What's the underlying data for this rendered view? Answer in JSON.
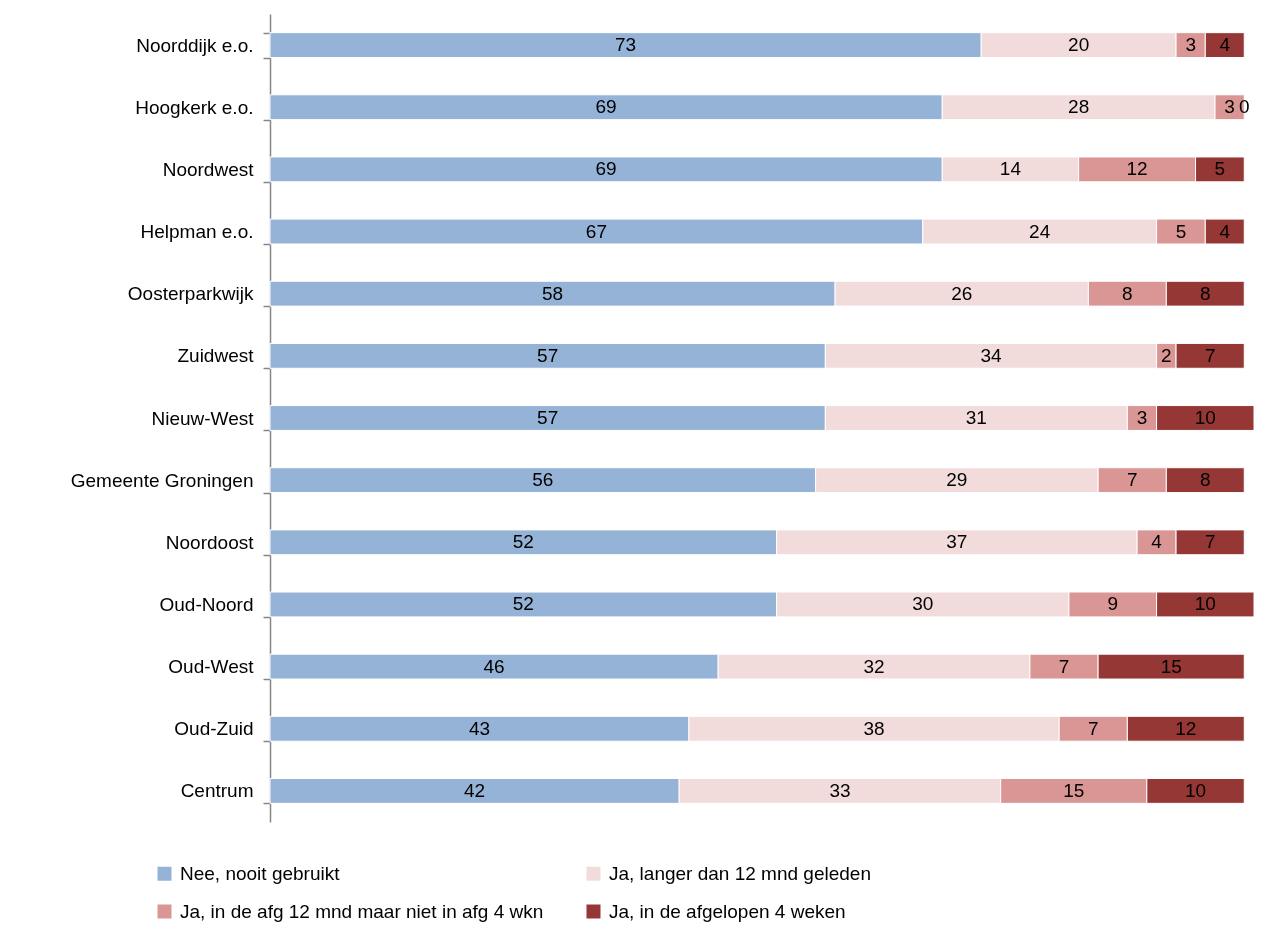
{
  "chart_data": {
    "type": "bar",
    "orientation": "horizontal",
    "stacked": true,
    "data_labels": true,
    "legend": "bottom",
    "grid": false,
    "tick_labels": "y",
    "categories": [
      "Noorddijk e.o.",
      "Hoogkerk e.o.",
      "Noordwest",
      "Helpman e.o.",
      "Oosterparkwijk",
      "Zuidwest",
      "Nieuw-West",
      "Gemeente Groningen",
      "Noordoost",
      "Oud-Noord",
      "Oud-West",
      "Oud-Zuid",
      "Centrum"
    ],
    "series": [
      {
        "name": "Nee, nooit gebruikt",
        "color": "#95b3d7",
        "values": [
          73,
          69,
          69,
          67,
          58,
          57,
          57,
          56,
          52,
          52,
          46,
          43,
          42
        ]
      },
      {
        "name": "Ja, langer dan 12 mnd geleden",
        "color": "#f2dcdb",
        "values": [
          20,
          28,
          14,
          24,
          26,
          34,
          31,
          29,
          37,
          30,
          32,
          38,
          33
        ]
      },
      {
        "name": "Ja, in de afg 12 mnd maar niet in afg 4 wkn",
        "color": "#d99694",
        "values": [
          3,
          3,
          12,
          5,
          8,
          2,
          3,
          7,
          4,
          9,
          7,
          7,
          15
        ]
      },
      {
        "name": "Ja, in de afgelopen 4 weken",
        "color": "#953735",
        "values": [
          4,
          0,
          5,
          4,
          8,
          7,
          10,
          8,
          7,
          10,
          15,
          12,
          10
        ]
      }
    ]
  }
}
